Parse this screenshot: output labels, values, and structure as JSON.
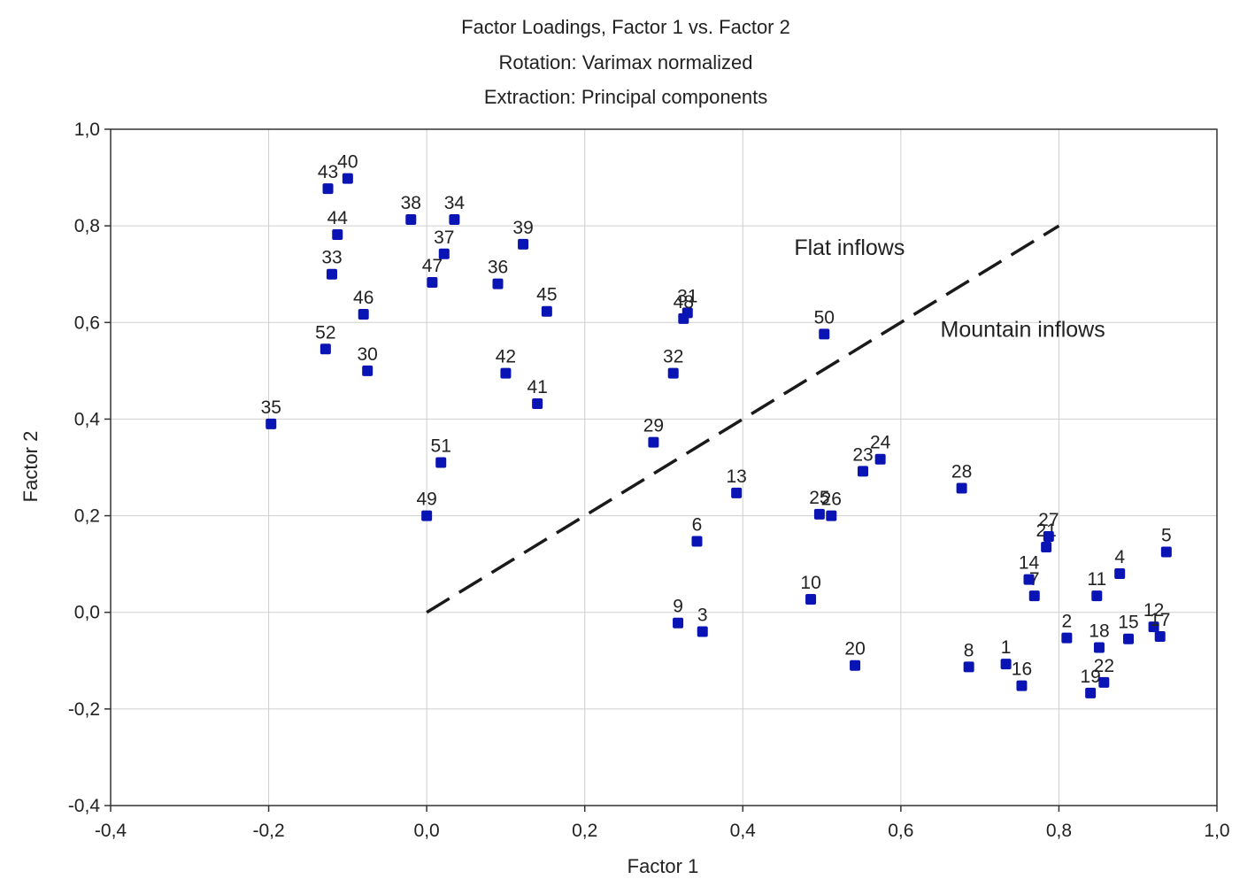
{
  "chart_data": {
    "type": "scatter",
    "title": "Factor Loadings, Factor 1 vs. Factor 2",
    "subtitle_lines": [
      "Rotation: Varimax normalized",
      "Extraction: Principal components"
    ],
    "xlabel": "Factor 1",
    "ylabel": "Factor 2",
    "xlim": [
      -0.4,
      1.0
    ],
    "ylim": [
      -0.4,
      1.0
    ],
    "xticks": [
      -0.4,
      -0.2,
      0.0,
      0.2,
      0.4,
      0.6,
      0.8,
      1.0
    ],
    "yticks": [
      -0.4,
      -0.2,
      0.0,
      0.2,
      0.4,
      0.6,
      0.8,
      1.0
    ],
    "xtick_labels": [
      "-0,4",
      "-0,2",
      "0,0",
      "0,2",
      "0,4",
      "0,6",
      "0,8",
      "1,0"
    ],
    "ytick_labels": [
      "-0,4",
      "-0,2",
      "0,0",
      "0,2",
      "0,4",
      "0,6",
      "0,8",
      "1,0"
    ],
    "grid": true,
    "marker_color": "#0a14b4",
    "points": [
      {
        "label": "1",
        "x": 0.733,
        "y": -0.107
      },
      {
        "label": "2",
        "x": 0.81,
        "y": -0.053
      },
      {
        "label": "3",
        "x": 0.349,
        "y": -0.04
      },
      {
        "label": "4",
        "x": 0.877,
        "y": 0.08
      },
      {
        "label": "5",
        "x": 0.936,
        "y": 0.125
      },
      {
        "label": "6",
        "x": 0.342,
        "y": 0.147
      },
      {
        "label": "7",
        "x": 0.769,
        "y": 0.034
      },
      {
        "label": "8",
        "x": 0.686,
        "y": -0.113
      },
      {
        "label": "9",
        "x": 0.318,
        "y": -0.022
      },
      {
        "label": "10",
        "x": 0.486,
        "y": 0.027
      },
      {
        "label": "11",
        "x": 0.848,
        "y": 0.034
      },
      {
        "label": "12",
        "x": 0.92,
        "y": -0.03
      },
      {
        "label": "13",
        "x": 0.392,
        "y": 0.247
      },
      {
        "label": "14",
        "x": 0.762,
        "y": 0.068
      },
      {
        "label": "15",
        "x": 0.888,
        "y": -0.055
      },
      {
        "label": "16",
        "x": 0.753,
        "y": -0.152
      },
      {
        "label": "17",
        "x": 0.928,
        "y": -0.05
      },
      {
        "label": "18",
        "x": 0.851,
        "y": -0.073
      },
      {
        "label": "19",
        "x": 0.84,
        "y": -0.167
      },
      {
        "label": "20",
        "x": 0.542,
        "y": -0.11
      },
      {
        "label": "21",
        "x": 0.784,
        "y": 0.135
      },
      {
        "label": "22",
        "x": 0.857,
        "y": -0.145
      },
      {
        "label": "23",
        "x": 0.552,
        "y": 0.292
      },
      {
        "label": "24",
        "x": 0.574,
        "y": 0.317
      },
      {
        "label": "25",
        "x": 0.497,
        "y": 0.203
      },
      {
        "label": "26",
        "x": 0.512,
        "y": 0.2
      },
      {
        "label": "27",
        "x": 0.787,
        "y": 0.157
      },
      {
        "label": "28",
        "x": 0.677,
        "y": 0.257
      },
      {
        "label": "29",
        "x": 0.287,
        "y": 0.352
      },
      {
        "label": "30",
        "x": -0.075,
        "y": 0.5
      },
      {
        "label": "31",
        "x": 0.33,
        "y": 0.62
      },
      {
        "label": "32",
        "x": 0.312,
        "y": 0.495
      },
      {
        "label": "33",
        "x": -0.12,
        "y": 0.7
      },
      {
        "label": "34",
        "x": 0.035,
        "y": 0.813
      },
      {
        "label": "35",
        "x": -0.197,
        "y": 0.39
      },
      {
        "label": "36",
        "x": 0.09,
        "y": 0.68
      },
      {
        "label": "37",
        "x": 0.022,
        "y": 0.742
      },
      {
        "label": "38",
        "x": -0.02,
        "y": 0.813
      },
      {
        "label": "39",
        "x": 0.122,
        "y": 0.762
      },
      {
        "label": "40",
        "x": -0.1,
        "y": 0.898
      },
      {
        "label": "41",
        "x": 0.14,
        "y": 0.432
      },
      {
        "label": "42",
        "x": 0.1,
        "y": 0.495
      },
      {
        "label": "43",
        "x": -0.125,
        "y": 0.877
      },
      {
        "label": "44",
        "x": -0.113,
        "y": 0.782
      },
      {
        "label": "45",
        "x": 0.152,
        "y": 0.623
      },
      {
        "label": "46",
        "x": -0.08,
        "y": 0.617
      },
      {
        "label": "47",
        "x": 0.007,
        "y": 0.683
      },
      {
        "label": "48",
        "x": 0.325,
        "y": 0.608
      },
      {
        "label": "49",
        "x": 0.0,
        "y": 0.2
      },
      {
        "label": "50",
        "x": 0.503,
        "y": 0.576
      },
      {
        "label": "51",
        "x": 0.018,
        "y": 0.31
      },
      {
        "label": "52",
        "x": -0.128,
        "y": 0.545
      }
    ],
    "divider_line": {
      "x": [
        0.0,
        0.8
      ],
      "y": [
        0.0,
        0.8
      ],
      "style": "dashed"
    },
    "annotations": [
      {
        "text": "Flat inflows",
        "x": 0.465,
        "y": 0.74
      },
      {
        "text": "Mountain inflows",
        "x": 0.65,
        "y": 0.57
      }
    ]
  }
}
